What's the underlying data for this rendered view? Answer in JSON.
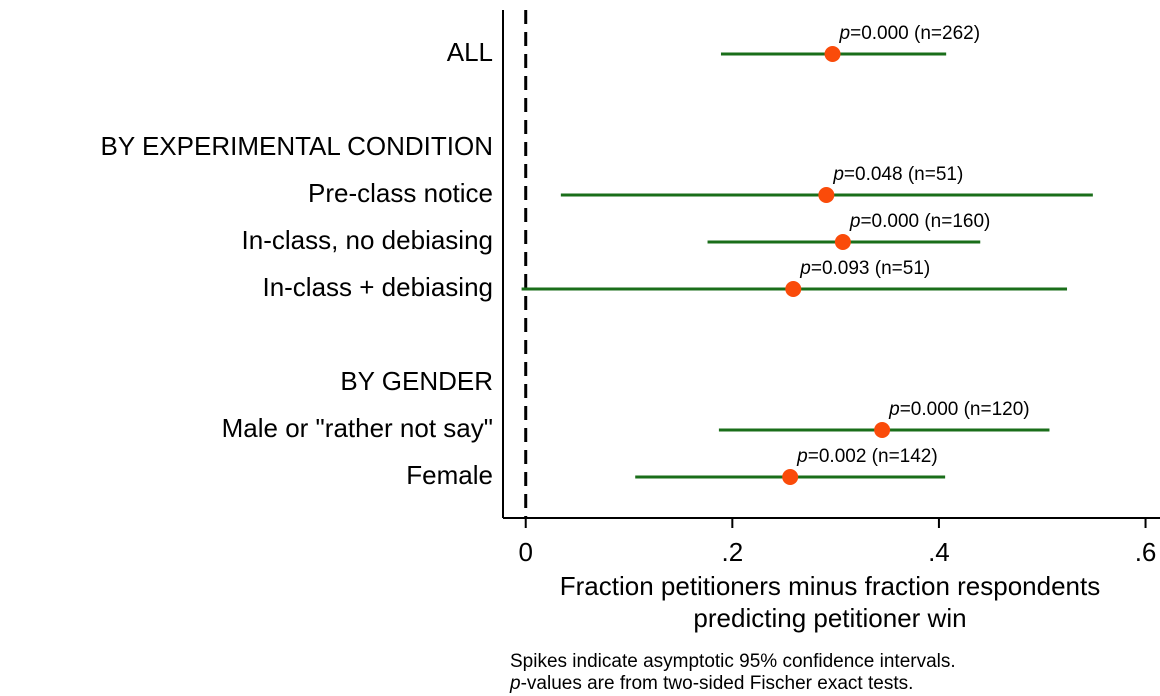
{
  "chart_data": {
    "type": "forest",
    "categories": [
      "ALL",
      null,
      "BY EXPERIMENTAL CONDITION",
      "Pre-class notice",
      "In-class, no debiasing",
      "In-class + debiasing",
      null,
      "BY GENDER",
      "Male or \"rather not say\"",
      "Female"
    ],
    "values": [
      0.297,
      null,
      null,
      0.291,
      0.307,
      0.259,
      null,
      null,
      0.345,
      0.256
    ],
    "ci_low": [
      0.189,
      null,
      null,
      0.034,
      0.176,
      -0.004,
      null,
      null,
      0.187,
      0.106
    ],
    "ci_high": [
      0.407,
      null,
      null,
      0.549,
      0.44,
      0.524,
      null,
      null,
      0.507,
      0.406
    ],
    "p_symbol": "p",
    "annotations": [
      "=0.000 (n=262)",
      null,
      null,
      "=0.048 (n=51)",
      "=0.000 (n=160)",
      "=0.093 (n=51)",
      null,
      null,
      "=0.000 (n=120)",
      "=0.002 (n=142)"
    ],
    "point_color": "#fa4b0a",
    "ci_color": "#1a6e1a",
    "reference_line": 0,
    "xlim": [
      -0.022,
      0.614
    ],
    "xticks": [
      0,
      {
        "value": 0.2,
        "label": ".2"
      },
      {
        "value": 0.4,
        "label": ".4"
      },
      {
        "value": 0.6,
        "label": ".6"
      }
    ],
    "xlabel": [
      "Fraction petitioners minus fraction respondents",
      "predicting petitioner win"
    ],
    "note": [
      "Spikes indicate asymptotic 95% confidence intervals.",
      "-values are from two-sided Fischer exact tests."
    ]
  }
}
